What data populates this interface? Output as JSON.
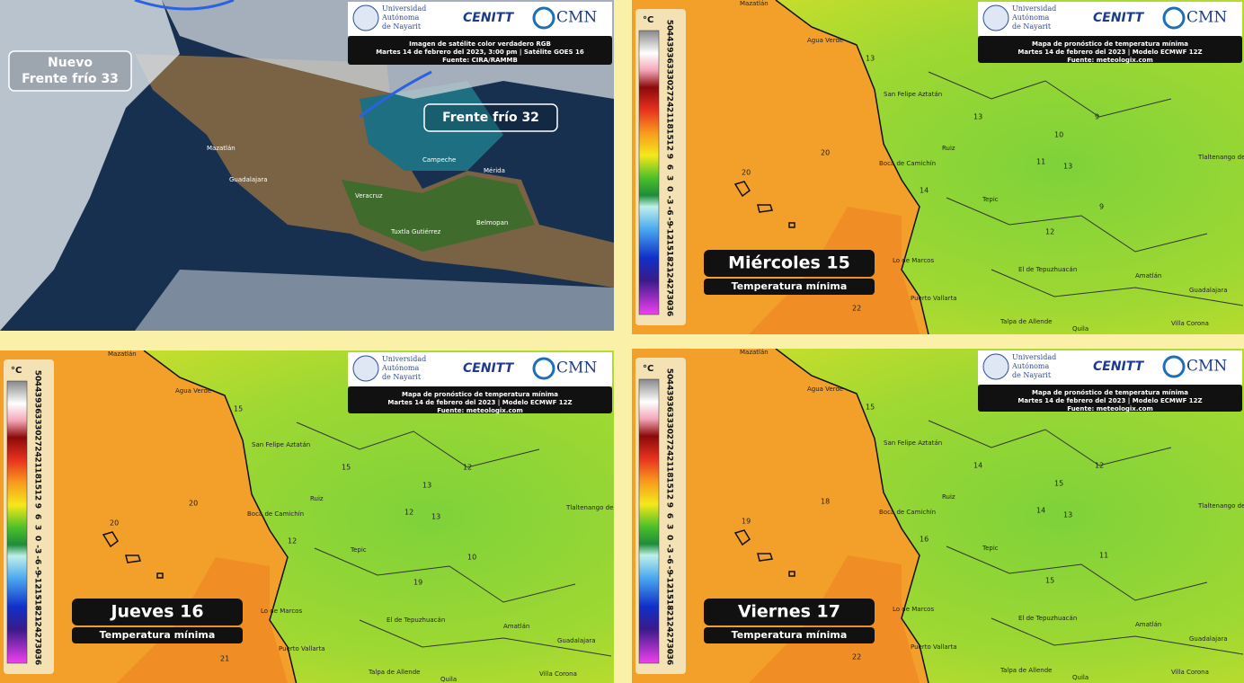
{
  "logos": {
    "university": [
      "Universidad",
      "Autónoma",
      "de Nayarit"
    ],
    "cenitt": "CENITT",
    "cmn": "CMN"
  },
  "satellite_panel": {
    "caption": [
      "Imagen de satélite color verdadero RGB",
      "Martes 14 de febrero del 2023, 3:00 pm | Satélite GOES 16",
      "Fuente: CIRA/RAMMB"
    ],
    "fronts": [
      {
        "lines": [
          "Nuevo",
          "Frente frío 33"
        ]
      },
      {
        "lines": [
          "Frente frío 32"
        ]
      }
    ],
    "places": [
      "Mazatlán",
      "Guadalajara",
      "Veracruz",
      "Tuxtla Gutiérrez",
      "Mérida",
      "Belmopan",
      "Campeche"
    ]
  },
  "forecast_caption": [
    "Mapa de pronóstico de temperatura mínima",
    "Martes 14 de febrero del 2023 | Modelo ECMWF 12Z",
    "Fuente: meteologix.com"
  ],
  "scale": {
    "unit": "°C",
    "ticks": [
      "50",
      "44",
      "39",
      "36",
      "33",
      "30",
      "27",
      "24",
      "21",
      "18",
      "15",
      "12",
      "9",
      "6",
      "3",
      "0",
      "-3",
      "-6",
      "-9",
      "-12",
      "-15",
      "-18",
      "-21",
      "-24",
      "-27",
      "-30",
      "-36"
    ]
  },
  "places": [
    "Mazatlán",
    "Agua Verde",
    "San Felipe Aztatán",
    "Ruiz",
    "Tepic",
    "Boca de Camichín",
    "Lo de Marcos",
    "Puerto Vallarta",
    "Talpa de Allende",
    "El de Tepuzhuacán",
    "Amatlán",
    "Guadalajara",
    "Villa Corona",
    "Tlaltenango de Sánchez Román",
    "Quila"
  ],
  "forecasts": [
    {
      "day": "Miércoles 15",
      "subtitle": "Temperatura mínima",
      "values": [
        "20",
        "20",
        "13",
        "13",
        "10",
        "9",
        "11",
        "13",
        "14",
        "9",
        "12",
        "22"
      ]
    },
    {
      "day": "Jueves 16",
      "subtitle": "Temperatura mínima",
      "values": [
        "20",
        "20",
        "15",
        "15",
        "13",
        "12",
        "12",
        "13",
        "12",
        "10",
        "19",
        "21"
      ]
    },
    {
      "day": "Viernes 17",
      "subtitle": "Temperatura mínima",
      "values": [
        "19",
        "18",
        "15",
        "14",
        "15",
        "12",
        "14",
        "13",
        "16",
        "11",
        "15",
        "22"
      ]
    }
  ]
}
